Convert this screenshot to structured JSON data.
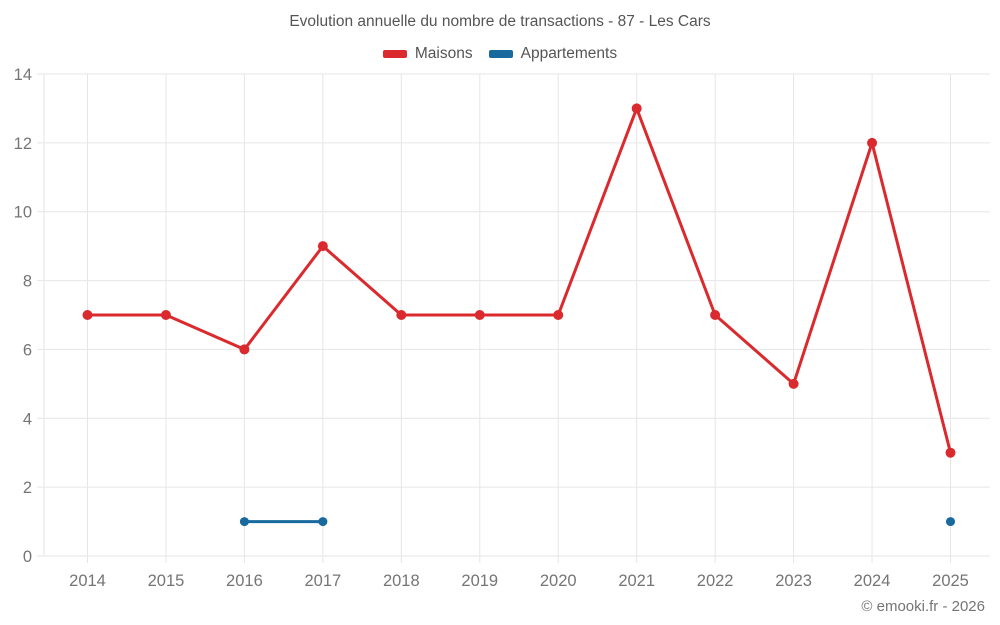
{
  "chart": {
    "title": "Evolution annuelle du nombre de transactions - 87 - Les Cars",
    "copyright": "© emooki.fr - 2026"
  },
  "chart_data": {
    "type": "line",
    "title": "Evolution annuelle du nombre de transactions - 87 - Les Cars",
    "xlabel": "",
    "ylabel": "",
    "categories": [
      "2014",
      "2015",
      "2016",
      "2017",
      "2018",
      "2019",
      "2020",
      "2021",
      "2022",
      "2023",
      "2024",
      "2025"
    ],
    "series": [
      {
        "name": "Maisons",
        "color": "#da2a2e",
        "values": [
          7,
          7,
          6,
          9,
          7,
          7,
          7,
          13,
          7,
          5,
          12,
          3
        ]
      },
      {
        "name": "Appartements",
        "color": "#17699e",
        "values": [
          null,
          null,
          1,
          1,
          null,
          null,
          null,
          null,
          null,
          null,
          null,
          1
        ]
      }
    ],
    "ylim": [
      0,
      14
    ],
    "yticks": [
      0,
      2,
      4,
      6,
      8,
      10,
      12,
      14
    ],
    "grid": true,
    "gridline_color": "#e6e6e6",
    "tick_label_color": "#757575",
    "legend_position": "top"
  }
}
